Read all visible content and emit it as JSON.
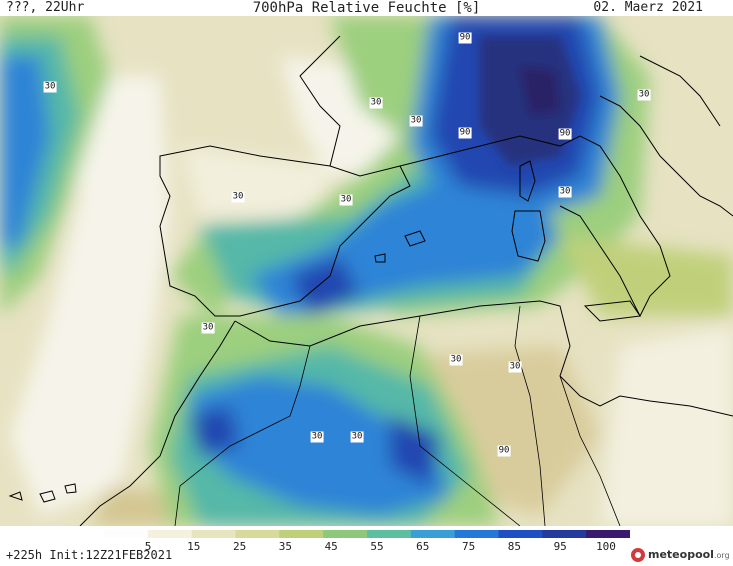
{
  "header": {
    "left": "???, 22Uhr",
    "title": "700hPa Relative Feuchte [%]",
    "right": "02. Maerz 2021"
  },
  "footer": {
    "run_info": "+225h Init:12Z21FEB2021"
  },
  "logo": {
    "brand": "meteopool",
    "domain": ".org",
    "icon": "meteopool-logo-icon"
  },
  "legend": {
    "ticks": [
      "5",
      "15",
      "25",
      "35",
      "45",
      "55",
      "65",
      "75",
      "85",
      "95",
      "100"
    ],
    "colors": [
      "#fdfdfd",
      "#f4f1de",
      "#e8e4c0",
      "#d8da9c",
      "#c0d07a",
      "#8ec87a",
      "#5cbfa0",
      "#3a9fd6",
      "#2478d8",
      "#1f4fc4",
      "#243a9c",
      "#3a1a6e"
    ]
  },
  "contour_labels": [
    {
      "text": "30"
    },
    {
      "text": "30"
    },
    {
      "text": "30"
    },
    {
      "text": "30"
    },
    {
      "text": "30"
    },
    {
      "text": "30"
    },
    {
      "text": "30"
    },
    {
      "text": "30"
    },
    {
      "text": "30"
    },
    {
      "text": "30"
    },
    {
      "text": "30"
    },
    {
      "text": "30"
    },
    {
      "text": "90"
    },
    {
      "text": "90"
    },
    {
      "text": "90"
    },
    {
      "text": "90"
    }
  ],
  "colors": {
    "land_dry": "#e6e2c2",
    "dry_white": "#f6f4ea",
    "sahara_tan": "#d9cc9c",
    "moist_green": "#9ccf7e",
    "teal": "#54b8a8",
    "blue": "#2f84d6",
    "dark_blue": "#2246b0",
    "navy": "#27307e",
    "coast": "#000000"
  }
}
